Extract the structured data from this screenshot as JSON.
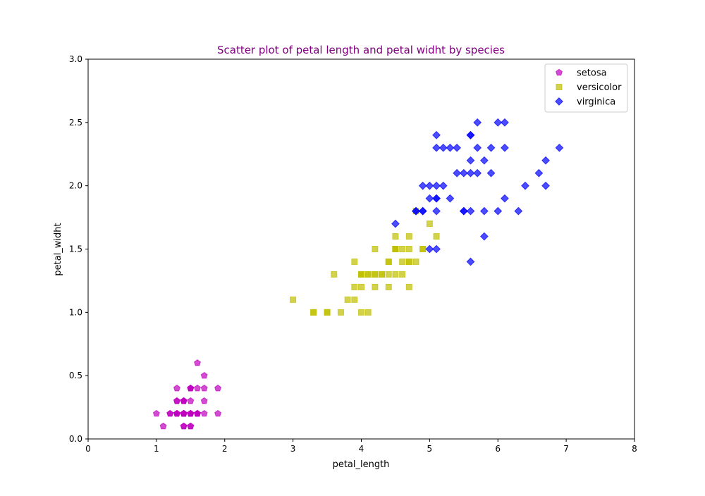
{
  "chart_data": {
    "type": "scatter",
    "title": "Scatter plot of petal length and petal widht by species",
    "title_color": "#800080",
    "xlabel": "petal_length",
    "ylabel": "petal_widht",
    "xlim": [
      0,
      8
    ],
    "ylim": [
      0,
      3
    ],
    "xticks": [
      0,
      1,
      2,
      3,
      4,
      5,
      6,
      7,
      8
    ],
    "xtick_labels": [
      "0",
      "1",
      "2",
      "3",
      "4",
      "5",
      "6",
      "7",
      "8"
    ],
    "yticks": [
      0,
      0.5,
      1,
      1.5,
      2,
      2.5,
      3
    ],
    "ytick_labels": [
      "0.0",
      "0.5",
      "1.0",
      "1.5",
      "2.0",
      "2.5",
      "3.0"
    ],
    "grid": false,
    "legend_position": "top-right",
    "series": [
      {
        "name": "setosa",
        "color": "#bf00bf",
        "marker": "pentagon",
        "x": [
          1.4,
          1.4,
          1.3,
          1.5,
          1.4,
          1.7,
          1.4,
          1.5,
          1.4,
          1.5,
          1.5,
          1.6,
          1.4,
          1.1,
          1.2,
          1.5,
          1.3,
          1.4,
          1.7,
          1.5,
          1.7,
          1.5,
          1.0,
          1.7,
          1.9,
          1.6,
          1.6,
          1.5,
          1.4,
          1.6,
          1.6,
          1.5,
          1.5,
          1.4,
          1.5,
          1.2,
          1.3,
          1.4,
          1.3,
          1.5,
          1.3,
          1.3,
          1.3,
          1.6,
          1.9,
          1.4,
          1.6,
          1.4,
          1.5,
          1.4
        ],
        "y": [
          0.2,
          0.2,
          0.2,
          0.2,
          0.2,
          0.4,
          0.3,
          0.2,
          0.2,
          0.1,
          0.2,
          0.2,
          0.1,
          0.1,
          0.2,
          0.4,
          0.4,
          0.3,
          0.3,
          0.3,
          0.2,
          0.4,
          0.2,
          0.5,
          0.2,
          0.2,
          0.4,
          0.2,
          0.2,
          0.2,
          0.2,
          0.4,
          0.1,
          0.2,
          0.2,
          0.2,
          0.2,
          0.1,
          0.2,
          0.2,
          0.3,
          0.3,
          0.2,
          0.6,
          0.4,
          0.3,
          0.2,
          0.2,
          0.2,
          0.2
        ]
      },
      {
        "name": "versicolor",
        "color": "#bfbf00",
        "marker": "square",
        "x": [
          4.7,
          4.5,
          4.9,
          4.0,
          4.6,
          4.5,
          4.7,
          3.3,
          4.6,
          3.9,
          3.5,
          4.2,
          4.0,
          4.7,
          3.6,
          4.4,
          4.5,
          4.1,
          4.5,
          3.9,
          4.8,
          4.0,
          4.9,
          4.7,
          4.3,
          4.4,
          4.8,
          5.0,
          4.5,
          3.5,
          3.8,
          3.7,
          3.9,
          5.1,
          4.5,
          4.5,
          4.7,
          4.4,
          4.1,
          4.0,
          4.4,
          4.6,
          4.0,
          3.3,
          4.2,
          4.2,
          4.2,
          4.3,
          3.0,
          4.1
        ],
        "y": [
          1.4,
          1.5,
          1.5,
          1.3,
          1.5,
          1.3,
          1.6,
          1.0,
          1.3,
          1.4,
          1.0,
          1.5,
          1.0,
          1.4,
          1.3,
          1.4,
          1.5,
          1.0,
          1.5,
          1.1,
          1.8,
          1.3,
          1.5,
          1.2,
          1.3,
          1.4,
          1.4,
          1.7,
          1.5,
          1.0,
          1.1,
          1.0,
          1.2,
          1.6,
          1.5,
          1.6,
          1.5,
          1.3,
          1.3,
          1.3,
          1.2,
          1.4,
          1.2,
          1.0,
          1.3,
          1.2,
          1.3,
          1.3,
          1.1,
          1.3
        ]
      },
      {
        "name": "virginica",
        "color": "#0000ff",
        "marker": "diamond",
        "x": [
          6.0,
          5.1,
          5.9,
          5.6,
          5.8,
          6.6,
          4.5,
          6.3,
          5.8,
          6.1,
          5.1,
          5.3,
          5.5,
          5.0,
          5.1,
          5.3,
          5.5,
          6.7,
          6.9,
          5.0,
          5.7,
          4.9,
          6.7,
          4.9,
          5.7,
          6.0,
          4.8,
          4.9,
          5.6,
          5.8,
          6.1,
          6.4,
          5.6,
          5.1,
          5.6,
          6.1,
          5.6,
          5.5,
          4.8,
          5.4,
          5.6,
          5.1,
          5.1,
          5.9,
          5.7,
          5.2,
          5.0,
          5.2,
          5.4,
          5.1
        ],
        "y": [
          2.5,
          1.9,
          2.1,
          1.8,
          2.2,
          2.1,
          1.7,
          1.8,
          1.8,
          2.5,
          2.0,
          1.9,
          2.1,
          2.0,
          2.4,
          2.3,
          1.8,
          2.2,
          2.3,
          1.5,
          2.3,
          2.0,
          2.0,
          1.8,
          2.1,
          1.8,
          1.8,
          1.8,
          2.1,
          1.6,
          1.9,
          2.0,
          2.2,
          1.5,
          1.4,
          2.3,
          2.4,
          1.8,
          1.8,
          2.1,
          2.4,
          2.3,
          1.9,
          2.3,
          2.5,
          2.3,
          1.9,
          2.0,
          2.3,
          1.8
        ]
      }
    ]
  }
}
